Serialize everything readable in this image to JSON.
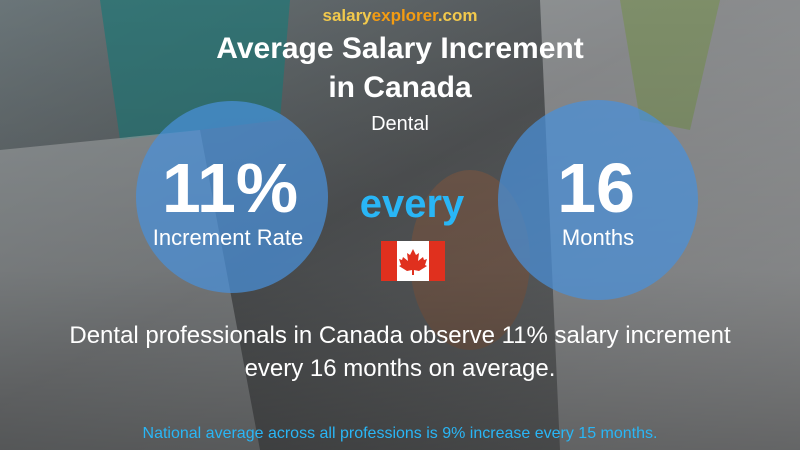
{
  "brand": {
    "part1": "salary",
    "part2": "explorer",
    "part3": ".com"
  },
  "title": [
    "Average Salary Increment",
    "in Canada"
  ],
  "subtitle": "Dental",
  "left": {
    "value": "11%",
    "label": "Increment Rate"
  },
  "connector": "every",
  "right": {
    "value": "16",
    "label": "Months"
  },
  "summary": [
    "Dental professionals in Canada observe 11% salary increment",
    "every 16 months on average."
  ],
  "footer": "National average across all professions is 9% increase every 15 months."
}
